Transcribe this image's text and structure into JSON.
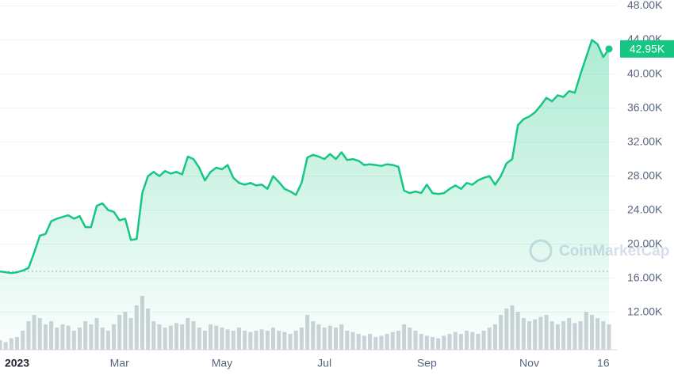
{
  "chart_data": {
    "type": "line",
    "categories": [
      null,
      null,
      null,
      "2023",
      null,
      null,
      null,
      null,
      null,
      null,
      null,
      null,
      null,
      null,
      null,
      null,
      null,
      null,
      null,
      null,
      null,
      "Mar",
      null,
      null,
      null,
      null,
      null,
      null,
      null,
      null,
      null,
      null,
      null,
      null,
      null,
      null,
      null,
      null,
      null,
      "May",
      null,
      null,
      null,
      null,
      null,
      null,
      null,
      null,
      null,
      null,
      null,
      null,
      null,
      null,
      null,
      null,
      null,
      "Jul",
      null,
      null,
      null,
      null,
      null,
      null,
      null,
      null,
      null,
      null,
      null,
      null,
      null,
      null,
      null,
      null,
      null,
      "Sep",
      null,
      null,
      null,
      null,
      null,
      null,
      null,
      null,
      null,
      null,
      null,
      null,
      null,
      null,
      null,
      null,
      null,
      "Nov",
      null,
      null,
      null,
      null,
      null,
      null,
      null,
      null,
      null,
      null,
      null,
      null,
      "16",
      null
    ],
    "series": [
      {
        "color": "#16c784",
        "values": [
          16800,
          16700,
          16600,
          16700,
          16900,
          17200,
          19000,
          21000,
          21200,
          22700,
          23000,
          23200,
          23400,
          23000,
          23300,
          22000,
          22000,
          24500,
          24800,
          24000,
          23800,
          22800,
          23000,
          20500,
          20600,
          26000,
          28000,
          28500,
          28000,
          28600,
          28300,
          28500,
          28200,
          30300,
          30000,
          29000,
          27500,
          28500,
          29000,
          28800,
          29300,
          27800,
          27200,
          27000,
          27200,
          26900,
          27000,
          26500,
          28000,
          27300,
          26500,
          26200,
          25800,
          27200,
          30200,
          30500,
          30300,
          30000,
          30600,
          30000,
          30800,
          29900,
          30000,
          29800,
          29300,
          29400,
          29300,
          29200,
          29400,
          29300,
          29100,
          26300,
          26000,
          26200,
          26000,
          27000,
          26000,
          25900,
          26000,
          26500,
          26900,
          26500,
          27200,
          27000,
          27500,
          27800,
          28000,
          27000,
          28000,
          29500,
          30000,
          34000,
          34700,
          35000,
          35500,
          36300,
          37200,
          36800,
          37500,
          37300,
          38000,
          37800,
          40000,
          42000,
          44000,
          43500,
          42000,
          42950
        ],
        "value_labels": [
          null,
          null,
          null,
          null,
          null,
          null,
          null,
          null,
          null,
          null,
          null,
          null,
          null,
          null,
          null,
          null,
          null,
          null,
          null,
          null,
          null,
          null,
          null,
          null,
          null,
          null,
          null,
          null,
          null,
          null,
          null,
          null,
          null,
          null,
          null,
          null,
          null,
          null,
          null,
          null,
          null,
          null,
          null,
          null,
          null,
          null,
          null,
          null,
          null,
          null,
          null,
          null,
          null,
          null,
          null,
          null,
          null,
          null,
          null,
          null,
          null,
          null,
          null,
          null,
          null,
          null,
          null,
          null,
          null,
          null,
          null,
          null,
          null,
          null,
          null,
          null,
          null,
          null,
          null,
          null,
          null,
          null,
          null,
          null,
          null,
          null,
          null,
          null,
          null,
          null,
          null,
          null,
          null,
          null,
          null,
          null,
          null,
          null,
          null,
          null,
          null,
          null,
          null,
          null,
          null,
          null,
          null,
          "42.95K"
        ]
      }
    ],
    "volume": {
      "color": "#cfd3da",
      "values": [
        15,
        12,
        18,
        20,
        30,
        45,
        55,
        50,
        40,
        45,
        35,
        40,
        38,
        30,
        35,
        45,
        40,
        50,
        35,
        30,
        40,
        55,
        60,
        50,
        70,
        85,
        65,
        45,
        40,
        35,
        38,
        42,
        40,
        50,
        45,
        35,
        30,
        40,
        38,
        35,
        32,
        30,
        35,
        30,
        28,
        30,
        32,
        30,
        35,
        30,
        28,
        25,
        30,
        35,
        55,
        45,
        40,
        35,
        38,
        35,
        40,
        30,
        28,
        25,
        22,
        25,
        20,
        22,
        25,
        28,
        30,
        40,
        35,
        30,
        25,
        22,
        20,
        18,
        22,
        25,
        28,
        25,
        30,
        28,
        25,
        30,
        35,
        40,
        55,
        65,
        70,
        60,
        50,
        45,
        48,
        52,
        55,
        45,
        40,
        45,
        50,
        42,
        45,
        60,
        55,
        50,
        45,
        40
      ]
    },
    "ylim": [
      7600,
      48700
    ],
    "yticks": [
      {
        "value": 12000,
        "label": "12.00K"
      },
      {
        "value": 16000,
        "label": "16.00K"
      },
      {
        "value": 20000,
        "label": "20.00K"
      },
      {
        "value": 24000,
        "label": "24.00K"
      },
      {
        "value": 28000,
        "label": "28.00K"
      },
      {
        "value": 32000,
        "label": "32.00K"
      },
      {
        "value": 36000,
        "label": "36.00K"
      },
      {
        "value": 40000,
        "label": "40.00K"
      },
      {
        "value": 44000,
        "label": "44.00K"
      },
      {
        "value": 48000,
        "label": "48.00K"
      }
    ],
    "grid": true,
    "watermark": "CoinMarketCap"
  }
}
